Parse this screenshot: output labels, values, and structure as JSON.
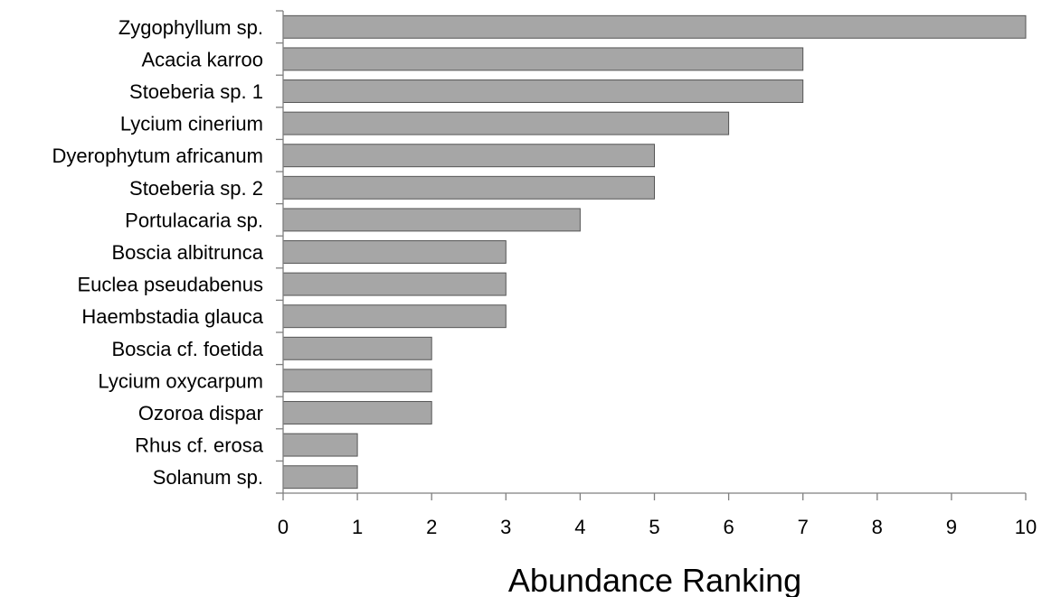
{
  "chart_data": {
    "type": "bar",
    "orientation": "horizontal",
    "categories": [
      "Zygophyllum sp.",
      "Acacia karroo",
      "Stoeberia sp. 1",
      "Lycium cinerium",
      "Dyerophytum africanum",
      "Stoeberia sp. 2",
      "Portulacaria sp.",
      "Boscia albitrunca",
      "Euclea pseudabenus",
      "Haembstadia glauca",
      "Boscia cf. foetida",
      "Lycium oxycarpum",
      "Ozoroa dispar",
      "Rhus cf. erosa",
      "Solanum sp."
    ],
    "values": [
      10,
      7,
      7,
      6,
      5,
      5,
      4,
      3,
      3,
      3,
      2,
      2,
      2,
      1,
      1
    ],
    "title": "",
    "xlabel": "Abundance Ranking",
    "ylabel": "",
    "xlim": [
      0,
      10
    ],
    "xticks": [
      "0",
      "1",
      "2",
      "3",
      "4",
      "5",
      "6",
      "7",
      "8",
      "9",
      "10"
    ],
    "grid": false,
    "legend": "none",
    "bar_color": "#a6a6a6",
    "bar_edge_color": "#555555"
  }
}
